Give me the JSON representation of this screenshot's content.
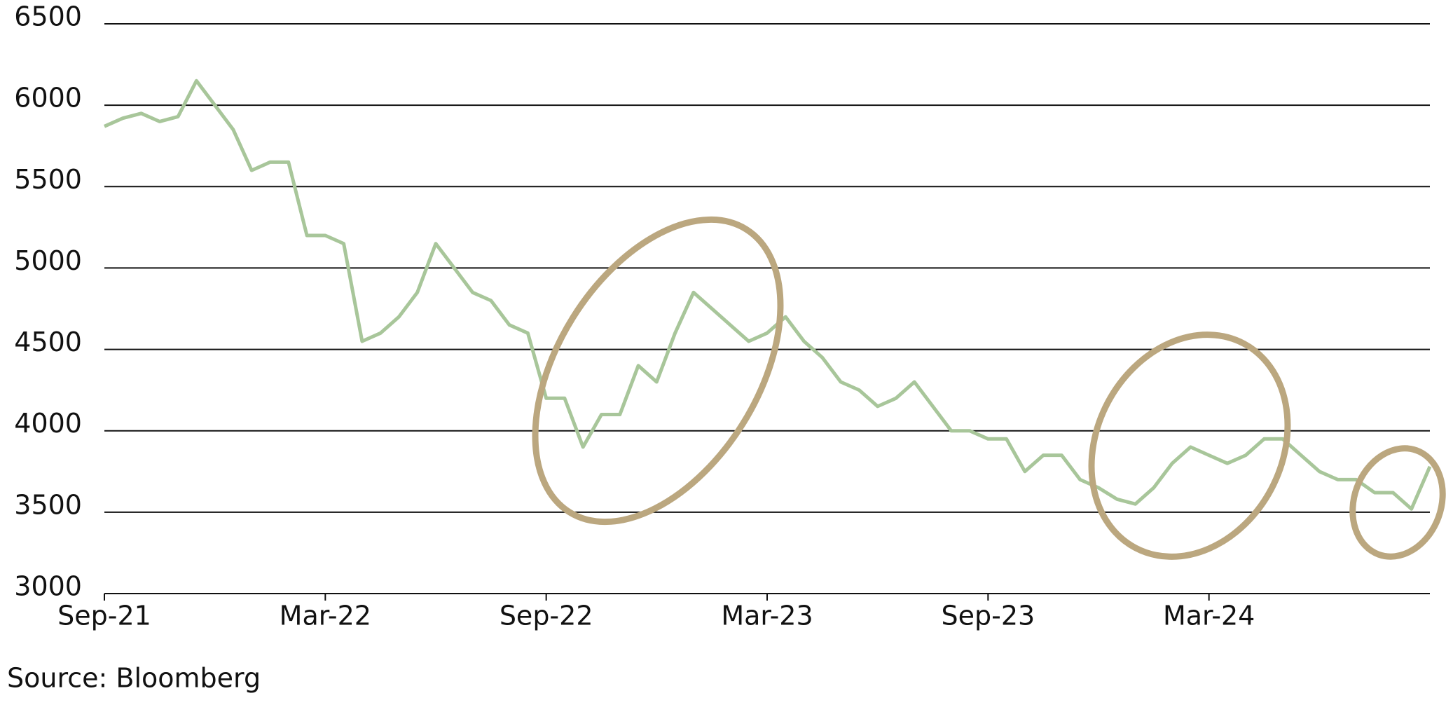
{
  "chart_data": {
    "type": "line",
    "categories": [
      "Sep-21",
      null,
      null,
      null,
      null,
      null,
      null,
      null,
      null,
      null,
      null,
      null,
      "Mar-22",
      null,
      null,
      null,
      null,
      null,
      null,
      null,
      null,
      null,
      null,
      null,
      "Sep-22",
      null,
      null,
      null,
      null,
      null,
      null,
      null,
      null,
      null,
      null,
      null,
      "Mar-23",
      null,
      null,
      null,
      null,
      null,
      null,
      null,
      null,
      null,
      null,
      null,
      "Sep-23",
      null,
      null,
      null,
      null,
      null,
      null,
      null,
      null,
      null,
      null,
      null,
      "Mar-24",
      null,
      null,
      null,
      null,
      null,
      null,
      null,
      null,
      null,
      null,
      null,
      null
    ],
    "series": [
      {
        "color": "#a8c69a",
        "values": [
          5870,
          5920,
          5950,
          5900,
          5930,
          6150,
          6000,
          5850,
          5600,
          5650,
          5650,
          5200,
          5200,
          5150,
          4550,
          4600,
          4700,
          4850,
          5150,
          5000,
          4850,
          4800,
          4650,
          4600,
          4200,
          4200,
          3900,
          4100,
          4100,
          4400,
          4300,
          4600,
          4850,
          4750,
          4650,
          4550,
          4600,
          4700,
          4550,
          4450,
          4300,
          4250,
          4150,
          4200,
          4300,
          4150,
          4000,
          4000,
          3950,
          3950,
          3750,
          3850,
          3850,
          3700,
          3650,
          3580,
          3550,
          3650,
          3800,
          3900,
          3850,
          3800,
          3850,
          3950,
          3950,
          3850,
          3750,
          3700,
          3700,
          3620,
          3620,
          3520,
          3780
        ]
      }
    ],
    "ylim": [
      3000,
      6500
    ],
    "yticks": [
      3000,
      3500,
      4000,
      4500,
      5000,
      5500,
      6000,
      6500
    ],
    "grid": true,
    "source": "Source: Bloomberg"
  }
}
